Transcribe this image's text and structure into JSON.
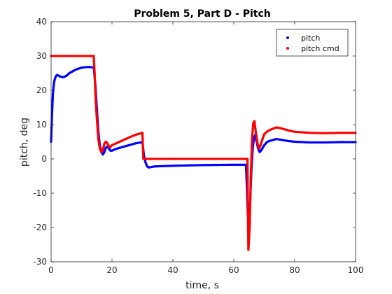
{
  "chart_data": {
    "type": "scatter",
    "title": "Problem 5, Part D - Pitch",
    "xlabel": "time, s",
    "ylabel": "pitch, deg",
    "xlim": [
      0,
      100
    ],
    "ylim": [
      -30,
      40
    ],
    "xticks": [
      0,
      20,
      40,
      60,
      80,
      100
    ],
    "yticks": [
      -30,
      -20,
      -10,
      0,
      10,
      20,
      30,
      40
    ],
    "grid": false,
    "legend_position": "top-right",
    "series": [
      {
        "name": "pitch",
        "color": "#0000ff",
        "points": [
          [
            0,
            5
          ],
          [
            0.3,
            13
          ],
          [
            0.6,
            19
          ],
          [
            1,
            22.5
          ],
          [
            1.5,
            24
          ],
          [
            2,
            24.5
          ],
          [
            3,
            24
          ],
          [
            4,
            23.8
          ],
          [
            5,
            24.2
          ],
          [
            6,
            25
          ],
          [
            8,
            26
          ],
          [
            10,
            26.6
          ],
          [
            12,
            26.8
          ],
          [
            14,
            26.7
          ],
          [
            14.5,
            22
          ],
          [
            15,
            15
          ],
          [
            15.5,
            8
          ],
          [
            16,
            4
          ],
          [
            16.5,
            2
          ],
          [
            17,
            1.3
          ],
          [
            17.5,
            2
          ],
          [
            18,
            3.3
          ],
          [
            18.5,
            3.6
          ],
          [
            19,
            3
          ],
          [
            19.5,
            2.4
          ],
          [
            20,
            2.4
          ],
          [
            21,
            2.8
          ],
          [
            22,
            3.1
          ],
          [
            24,
            3.6
          ],
          [
            26,
            4.1
          ],
          [
            28,
            4.6
          ],
          [
            29.5,
            4.8
          ],
          [
            30,
            4.8
          ],
          [
            30.5,
            1
          ],
          [
            31,
            -1
          ],
          [
            31.5,
            -2.1
          ],
          [
            32,
            -2.5
          ],
          [
            34,
            -2.2
          ],
          [
            40,
            -2
          ],
          [
            50,
            -1.8
          ],
          [
            60,
            -1.7
          ],
          [
            64,
            -1.7
          ],
          [
            64.3,
            -8
          ],
          [
            64.6,
            -16
          ],
          [
            65,
            -19
          ],
          [
            65.4,
            -12
          ],
          [
            65.8,
            -3
          ],
          [
            66.2,
            3
          ],
          [
            66.6,
            6
          ],
          [
            67,
            7
          ],
          [
            67.5,
            5
          ],
          [
            68,
            3
          ],
          [
            68.5,
            2
          ],
          [
            69,
            2.5
          ],
          [
            70,
            4
          ],
          [
            71,
            5
          ],
          [
            72,
            5.3
          ],
          [
            74,
            5.8
          ],
          [
            76,
            5.5
          ],
          [
            78,
            5.2
          ],
          [
            80,
            5
          ],
          [
            85,
            4.8
          ],
          [
            90,
            4.8
          ],
          [
            95,
            4.9
          ],
          [
            100,
            4.9
          ]
        ]
      },
      {
        "name": "pitch cmd",
        "color": "#ff0000",
        "points": [
          [
            0,
            30
          ],
          [
            5,
            30
          ],
          [
            10,
            30
          ],
          [
            14,
            30
          ],
          [
            14.3,
            25
          ],
          [
            14.6,
            18
          ],
          [
            15,
            12
          ],
          [
            15.5,
            6
          ],
          [
            16,
            3
          ],
          [
            16.5,
            2
          ],
          [
            17,
            2.5
          ],
          [
            17.5,
            4.5
          ],
          [
            18,
            5
          ],
          [
            18.5,
            4.5
          ],
          [
            19,
            3.6
          ],
          [
            19.5,
            3.5
          ],
          [
            20,
            4
          ],
          [
            22,
            4.8
          ],
          [
            24,
            5.6
          ],
          [
            26,
            6.4
          ],
          [
            28,
            7.1
          ],
          [
            30,
            7.6
          ],
          [
            30.3,
            0
          ],
          [
            35,
            0
          ],
          [
            40,
            0
          ],
          [
            50,
            0
          ],
          [
            60,
            0
          ],
          [
            64.5,
            0
          ],
          [
            64.6,
            -12
          ],
          [
            64.8,
            -26.5
          ],
          [
            65.2,
            -20
          ],
          [
            65.6,
            -5
          ],
          [
            66,
            6
          ],
          [
            66.4,
            10.5
          ],
          [
            66.8,
            11
          ],
          [
            67.2,
            8
          ],
          [
            67.8,
            4.5
          ],
          [
            68.3,
            3
          ],
          [
            68.8,
            4
          ],
          [
            69.5,
            6
          ],
          [
            70,
            7.2
          ],
          [
            71,
            8
          ],
          [
            72,
            8.5
          ],
          [
            74,
            9.2
          ],
          [
            76,
            8.8
          ],
          [
            78,
            8.3
          ],
          [
            80,
            7.9
          ],
          [
            85,
            7.6
          ],
          [
            90,
            7.5
          ],
          [
            95,
            7.6
          ],
          [
            100,
            7.6
          ]
        ]
      }
    ]
  }
}
